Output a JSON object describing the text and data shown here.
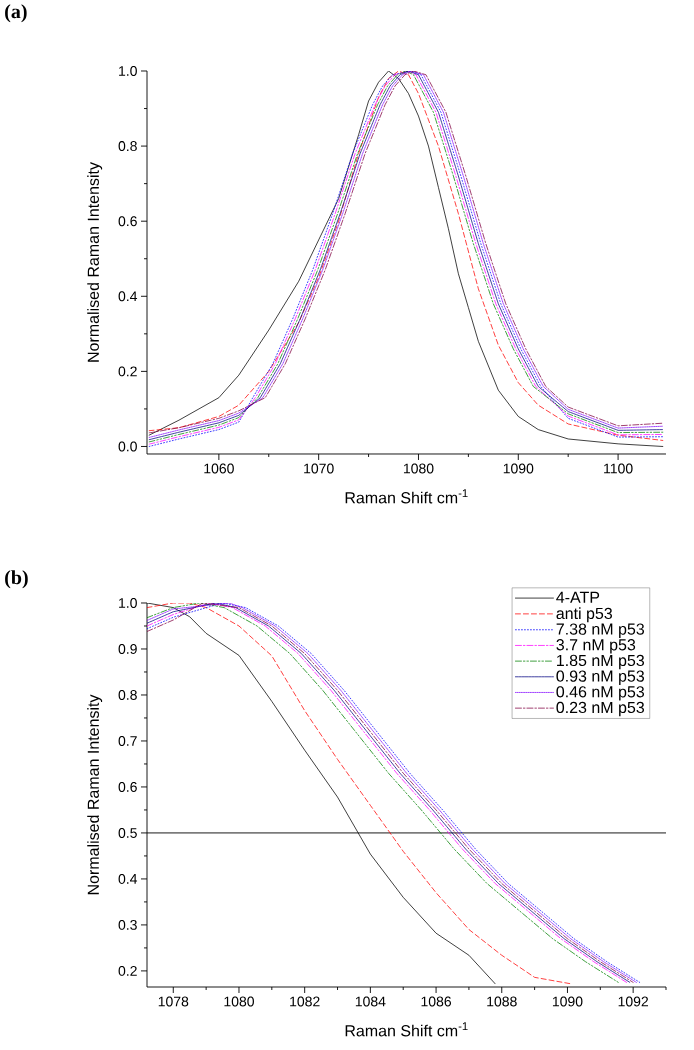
{
  "chart_data": [
    {
      "type": "line",
      "title": "(a)",
      "xlabel": "Raman Shift cm$^{-1}$",
      "ylabel": "Normalised Raman Intensity",
      "xlim": [
        1052.8,
        1104.8
      ],
      "ylim": [
        -0.02,
        1.0
      ],
      "xticks": [
        1060,
        {
          "value": 1065,
          "label": null
        },
        1070,
        {
          "value": 1075,
          "label": null
        },
        1080,
        {
          "value": 1085,
          "label": null
        },
        1090,
        {
          "value": 1095,
          "label": null
        },
        1100
      ],
      "yticks": [
        {
          "value": 0,
          "label": "0.0"
        },
        {
          "value": 0.1,
          "label": null
        },
        {
          "value": 0.2,
          "label": "0.2"
        },
        {
          "value": 0.3,
          "label": null
        },
        {
          "value": 0.4,
          "label": "0.4"
        },
        {
          "value": 0.5,
          "label": null
        },
        {
          "value": 0.6,
          "label": "0.6"
        },
        {
          "value": 0.7,
          "label": null
        },
        {
          "value": 0.8,
          "label": "0.8"
        },
        {
          "value": 0.9,
          "label": null
        },
        {
          "value": 1.0,
          "label": "1.0"
        }
      ],
      "series": [
        {
          "color": "#000000",
          "line_style": "solid",
          "x": [
            1053,
            1056,
            1060,
            1062,
            1065,
            1068,
            1070,
            1072,
            1074,
            1075,
            1076,
            1077,
            1078,
            1079,
            1080,
            1081,
            1082,
            1083,
            1084,
            1085,
            1086,
            1088,
            1090,
            1092,
            1095,
            1100,
            1104.5
          ],
          "values": [
            0.03,
            0.07,
            0.13,
            0.19,
            0.31,
            0.44,
            0.55,
            0.66,
            0.83,
            0.92,
            0.97,
            1.0,
            0.98,
            0.94,
            0.88,
            0.8,
            0.69,
            0.58,
            0.46,
            0.37,
            0.28,
            0.15,
            0.08,
            0.045,
            0.02,
            0.007,
            0.0
          ]
        },
        {
          "color": "#ff0000",
          "line_style": "dashed",
          "x": [
            1053,
            1056,
            1060,
            1062,
            1065,
            1068,
            1070,
            1072,
            1074,
            1076,
            1077,
            1078,
            1079,
            1080,
            1082,
            1084,
            1086,
            1088,
            1090,
            1092,
            1095,
            1100,
            1104.5
          ],
          "values": [
            0.042,
            0.05,
            0.08,
            0.11,
            0.2,
            0.33,
            0.45,
            0.6,
            0.78,
            0.93,
            0.98,
            1.0,
            0.99,
            0.94,
            0.8,
            0.62,
            0.42,
            0.27,
            0.17,
            0.11,
            0.06,
            0.03,
            0.016
          ]
        },
        {
          "color": "#0000ff",
          "line_style": "dotted",
          "x": [
            1053,
            1056,
            1060,
            1062,
            1063.4,
            1065.4,
            1067.4,
            1069.4,
            1071.4,
            1073.4,
            1075.4,
            1076.4,
            1077.4,
            1079.2,
            1080.25,
            1082.25,
            1084.25,
            1086.25,
            1088.25,
            1090.25,
            1092.25,
            1095,
            1100,
            1104.5
          ],
          "values": [
            0.0,
            0.02,
            0.045,
            0.065,
            0.13,
            0.22,
            0.34,
            0.47,
            0.62,
            0.78,
            0.91,
            0.96,
            0.99,
            1.0,
            0.99,
            0.89,
            0.72,
            0.54,
            0.38,
            0.26,
            0.16,
            0.075,
            0.025,
            0.026
          ]
        },
        {
          "color": "#ff00ff",
          "line_style": "dashdot",
          "x": [
            1053,
            1056,
            1060,
            1062,
            1063.65,
            1065.65,
            1067.65,
            1069.65,
            1071.65,
            1073.65,
            1075.65,
            1076.65,
            1077.65,
            1078.9,
            1079.75,
            1081.75,
            1083.75,
            1085.75,
            1087.75,
            1089.75,
            1091.75,
            1095,
            1100,
            1104.5
          ],
          "values": [
            0.006,
            0.026,
            0.051,
            0.071,
            0.13,
            0.22,
            0.34,
            0.47,
            0.62,
            0.78,
            0.91,
            0.96,
            0.99,
            1.0,
            0.99,
            0.89,
            0.72,
            0.54,
            0.38,
            0.26,
            0.16,
            0.081,
            0.031,
            0.032
          ]
        },
        {
          "color": "#008000",
          "line_style": "dashdotdot",
          "x": [
            1053,
            1056,
            1060,
            1062,
            1063.9,
            1065.9,
            1067.9,
            1069.9,
            1071.9,
            1073.9,
            1075.9,
            1076.9,
            1077.9,
            1078.7,
            1079.5,
            1081.5,
            1083.5,
            1085.5,
            1087.5,
            1089.5,
            1091.5,
            1095,
            1100,
            1104.5
          ],
          "values": [
            0.012,
            0.032,
            0.057,
            0.077,
            0.13,
            0.22,
            0.34,
            0.47,
            0.62,
            0.78,
            0.91,
            0.96,
            0.99,
            1.0,
            0.99,
            0.89,
            0.72,
            0.54,
            0.38,
            0.26,
            0.16,
            0.087,
            0.037,
            0.038
          ]
        },
        {
          "color": "#000080",
          "line_style": "short dashed",
          "x": [
            1053,
            1056,
            1060,
            1062,
            1064.15,
            1066.15,
            1068.15,
            1070.15,
            1072.15,
            1074.15,
            1076.15,
            1077.15,
            1078.15,
            1079.0,
            1080,
            1082,
            1084,
            1086,
            1088,
            1090,
            1092,
            1095,
            1100,
            1104.5
          ],
          "values": [
            0.018,
            0.038,
            0.063,
            0.083,
            0.13,
            0.22,
            0.34,
            0.47,
            0.62,
            0.78,
            0.91,
            0.96,
            0.99,
            1.0,
            0.99,
            0.89,
            0.72,
            0.54,
            0.38,
            0.26,
            0.16,
            0.093,
            0.043,
            0.045
          ]
        },
        {
          "color": "#8000ff",
          "line_style": "dense dotted",
          "x": [
            1053,
            1056,
            1060,
            1062,
            1064.4,
            1066.4,
            1068.4,
            1070.4,
            1072.4,
            1074.4,
            1076.4,
            1077.4,
            1078.4,
            1079.3,
            1080.5,
            1082.5,
            1084.5,
            1086.5,
            1088.5,
            1090.5,
            1092.5,
            1095,
            1100,
            1104.5
          ],
          "values": [
            0.024,
            0.044,
            0.069,
            0.089,
            0.13,
            0.22,
            0.34,
            0.47,
            0.62,
            0.78,
            0.91,
            0.96,
            0.99,
            1.0,
            0.99,
            0.89,
            0.72,
            0.54,
            0.38,
            0.26,
            0.16,
            0.099,
            0.049,
            0.054
          ]
        },
        {
          "color": "#800040",
          "line_style": "dashdot",
          "x": [
            1053,
            1056,
            1060,
            1062,
            1064.65,
            1066.65,
            1068.65,
            1070.65,
            1072.65,
            1074.65,
            1076.65,
            1077.65,
            1078.65,
            1079.5,
            1080.75,
            1082.75,
            1084.75,
            1086.75,
            1088.75,
            1090.75,
            1092.75,
            1095,
            1100,
            1104.5
          ],
          "values": [
            0.036,
            0.05,
            0.075,
            0.095,
            0.13,
            0.22,
            0.34,
            0.47,
            0.62,
            0.78,
            0.91,
            0.96,
            0.99,
            1.0,
            0.99,
            0.89,
            0.72,
            0.54,
            0.38,
            0.26,
            0.16,
            0.105,
            0.055,
            0.062
          ]
        }
      ]
    },
    {
      "type": "line",
      "title": "(b)",
      "xlabel": "Raman Shift cm$^{-1}$",
      "ylabel": "Normalised Raman Intensity",
      "xlim": [
        1077.2,
        1093.0
      ],
      "ylim": [
        0.165,
        1.0
      ],
      "legend": "top right",
      "xticks": [
        1078,
        {
          "value": 1079,
          "label": null
        },
        1080,
        {
          "value": 1081,
          "label": null
        },
        1082,
        {
          "value": 1083,
          "label": null
        },
        1084,
        {
          "value": 1085,
          "label": null
        },
        1086,
        {
          "value": 1087,
          "label": null
        },
        1088,
        {
          "value": 1089,
          "label": null
        },
        1090,
        {
          "value": 1091,
          "label": null
        },
        1092,
        {
          "value": 1093,
          "label": null
        }
      ],
      "yticks": [
        {
          "value": 0.2,
          "label": "0.2"
        },
        {
          "value": 0.25,
          "label": null
        },
        {
          "value": 0.3,
          "label": "0.3"
        },
        {
          "value": 0.35,
          "label": null
        },
        {
          "value": 0.4,
          "label": "0.4"
        },
        {
          "value": 0.45,
          "label": null
        },
        {
          "value": 0.5,
          "label": "0.5"
        },
        {
          "value": 0.55,
          "label": null
        },
        {
          "value": 0.6,
          "label": "0.6"
        },
        {
          "value": 0.65,
          "label": null
        },
        {
          "value": 0.7,
          "label": "0.7"
        },
        {
          "value": 0.75,
          "label": null
        },
        {
          "value": 0.8,
          "label": "0.8"
        },
        {
          "value": 0.85,
          "label": null
        },
        {
          "value": 0.9,
          "label": "0.9"
        },
        {
          "value": 0.95,
          "label": null
        },
        {
          "value": 1.0,
          "label": "1.0"
        }
      ],
      "ref_lines": [
        {
          "axis": "y",
          "value": 0.5,
          "color": "#000000"
        }
      ],
      "series": [
        {
          "name": "4-ATP",
          "color": "#000000",
          "line_style": "solid",
          "x": [
            1077.2,
            1078,
            1078.5,
            1079,
            1080,
            1081,
            1082,
            1083,
            1084,
            1085,
            1086,
            1087,
            1087.8
          ],
          "values": [
            1.0,
            0.99,
            0.97,
            0.934,
            0.886,
            0.786,
            0.68,
            0.578,
            0.454,
            0.36,
            0.282,
            0.234,
            0.172
          ]
        },
        {
          "name": "anti p53",
          "color": "#ff0000",
          "line_style": "dashed",
          "x": [
            1077.2,
            1078,
            1078.5,
            1079,
            1080,
            1081,
            1082,
            1083,
            1084,
            1085,
            1086,
            1087,
            1088,
            1089,
            1090.1
          ],
          "values": [
            0.99,
            1.0,
            1.0,
            0.99,
            0.95,
            0.885,
            0.766,
            0.66,
            0.56,
            0.46,
            0.37,
            0.29,
            0.234,
            0.186,
            0.172
          ]
        },
        {
          "name": "7.38 nM p53",
          "color": "#0000ff",
          "line_style": "dotted",
          "x": [
            1077.2,
            1078,
            1079.5,
            1080.2,
            1081.2,
            1082.2,
            1083.2,
            1084.2,
            1085.2,
            1086.2,
            1087.2,
            1088.2,
            1089.2,
            1090.2,
            1091.2,
            1092.2
          ],
          "values": [
            0.944,
            0.969,
            1.0,
            0.99,
            0.95,
            0.89,
            0.81,
            0.72,
            0.63,
            0.55,
            0.465,
            0.39,
            0.33,
            0.27,
            0.22,
            0.175
          ]
        },
        {
          "name": "3.7 nM p53",
          "color": "#ff00ff",
          "line_style": "dashdot",
          "x": [
            1077.2,
            1078,
            1079.1,
            1079.8,
            1080.8,
            1081.8,
            1082.8,
            1083.8,
            1084.8,
            1085.8,
            1086.8,
            1087.8,
            1088.8,
            1089.8,
            1090.8,
            1091.8
          ],
          "values": [
            0.95,
            0.975,
            1.0,
            0.99,
            0.95,
            0.89,
            0.81,
            0.72,
            0.63,
            0.55,
            0.465,
            0.39,
            0.33,
            0.27,
            0.22,
            0.175
          ]
        },
        {
          "name": "1.85 nM p53",
          "color": "#008000",
          "line_style": "dashdotdot",
          "x": [
            1077.2,
            1078,
            1078.8,
            1079.55,
            1080.55,
            1081.55,
            1082.55,
            1083.55,
            1084.55,
            1085.55,
            1086.55,
            1087.55,
            1088.55,
            1089.55,
            1090.55,
            1091.55
          ],
          "values": [
            0.968,
            0.99,
            1.0,
            0.99,
            0.95,
            0.89,
            0.81,
            0.72,
            0.63,
            0.55,
            0.465,
            0.39,
            0.33,
            0.27,
            0.22,
            0.175
          ]
        },
        {
          "name": "0.93 nM p53",
          "color": "#000080",
          "line_style": "short dashed",
          "x": [
            1077.2,
            1078,
            1079.3,
            1079.9,
            1080.9,
            1081.9,
            1082.9,
            1083.9,
            1084.9,
            1085.9,
            1086.9,
            1087.9,
            1088.9,
            1089.9,
            1090.9,
            1091.9
          ],
          "values": [
            0.956,
            0.981,
            1.0,
            0.99,
            0.95,
            0.89,
            0.81,
            0.72,
            0.63,
            0.55,
            0.465,
            0.39,
            0.33,
            0.27,
            0.22,
            0.175
          ]
        },
        {
          "name": "0.46 nM p53",
          "color": "#8000ff",
          "line_style": "dense dotted",
          "x": [
            1077.2,
            1078,
            1079.7,
            1080.1,
            1081.1,
            1082.1,
            1083.1,
            1084.1,
            1085.1,
            1086.1,
            1087.1,
            1088.1,
            1089.1,
            1090.1,
            1091.1,
            1092.1
          ],
          "values": [
            0.962,
            0.987,
            1.0,
            0.99,
            0.95,
            0.89,
            0.81,
            0.72,
            0.63,
            0.55,
            0.465,
            0.39,
            0.33,
            0.27,
            0.22,
            0.175
          ]
        },
        {
          "name": "0.23 nM p53",
          "color": "#800040",
          "line_style": "dashdot",
          "x": [
            1077.2,
            1078,
            1078.9,
            1080,
            1081,
            1082,
            1083,
            1084,
            1085,
            1086,
            1087,
            1088,
            1089,
            1090,
            1091,
            1092
          ],
          "values": [
            0.938,
            0.963,
            1.0,
            0.99,
            0.95,
            0.89,
            0.81,
            0.72,
            0.63,
            0.55,
            0.465,
            0.39,
            0.33,
            0.27,
            0.22,
            0.175
          ]
        }
      ]
    }
  ]
}
